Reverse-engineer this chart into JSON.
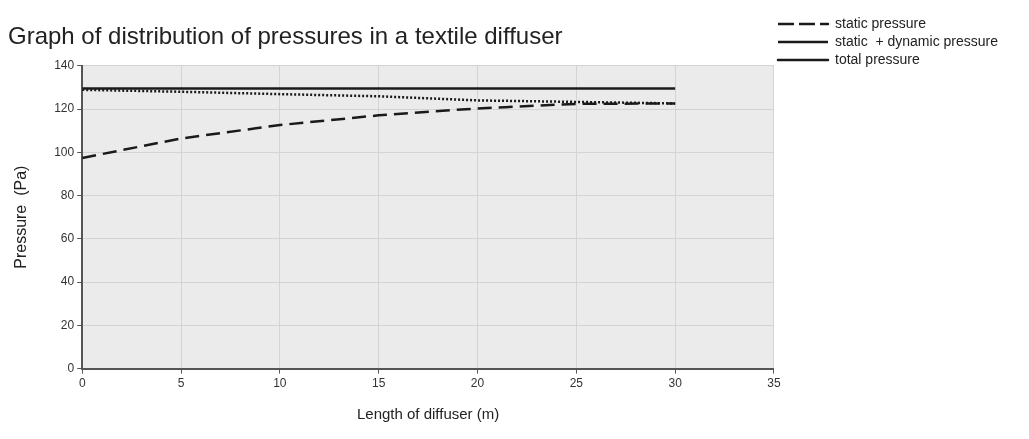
{
  "chart_data": {
    "type": "line",
    "title": "Graph of distribution of pressures in a textile diffuser",
    "xlabel": "Length of diffuser (m)",
    "ylabel": "Pressure  (Pa)",
    "x": [
      0,
      5,
      10,
      15,
      20,
      25,
      30
    ],
    "series": [
      {
        "name": "static pressure",
        "color": "#1a1a1a",
        "line_style": "dashed",
        "values": [
          97.4,
          106.4,
          112.6,
          117.1,
          120.3,
          122.4,
          122.6
        ]
      },
      {
        "name": "static  + dynamic pressure",
        "color": "#1a1a1a",
        "line_style": "dotted",
        "values": [
          128.9,
          128,
          126.9,
          125.9,
          124,
          123.3,
          122.6
        ]
      },
      {
        "name": "total pressure",
        "color": "#1a1a1a",
        "line_style": "solid",
        "values": [
          129.5,
          129.5,
          129.5,
          129.5,
          129.5,
          129.5,
          129.5
        ]
      }
    ],
    "xlim": [
      0,
      35
    ],
    "xticks": [
      0,
      5,
      10,
      15,
      20,
      25,
      30,
      35
    ],
    "ylim": [
      0,
      140
    ],
    "yticks": [
      0,
      20,
      40,
      60,
      80,
      100,
      120,
      140
    ],
    "grid": true,
    "legend": "top right"
  }
}
